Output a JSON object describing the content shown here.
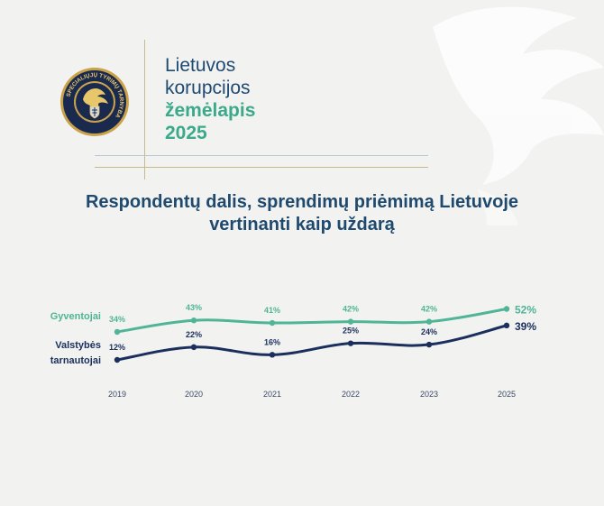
{
  "header": {
    "logo_text": "SPECIALIŲJŲ TYRIMŲ TARNYBA",
    "brand_line1": "Lietuvos",
    "brand_line2": "korupcijos",
    "brand_line3": "žemėlapis",
    "brand_line4": "2025"
  },
  "colors": {
    "navy": "#1b2f5c",
    "teal": "#4fb596",
    "gold": "#c9b98f"
  },
  "chart_data": {
    "type": "line",
    "title_line1": "Respondentų dalis, sprendimų priėmimą Lietuvoje",
    "title_line2": "vertinanti kaip uždarą",
    "x": [
      "2019",
      "2020",
      "2021",
      "2022",
      "2023",
      "2025"
    ],
    "series": [
      {
        "name": "Gyventojai",
        "values": [
          34,
          43,
          41,
          42,
          42,
          52
        ],
        "labels": [
          "34%",
          "43%",
          "41%",
          "42%",
          "42%",
          "52%"
        ]
      },
      {
        "name": "Valstybės tarnautojai",
        "name_line1": "Valstybės",
        "name_line2": "tarnautojai",
        "values": [
          12,
          22,
          16,
          25,
          24,
          39
        ],
        "labels": [
          "12%",
          "22%",
          "16%",
          "25%",
          "24%",
          "39%"
        ]
      }
    ],
    "grid": false,
    "legend": "left"
  }
}
